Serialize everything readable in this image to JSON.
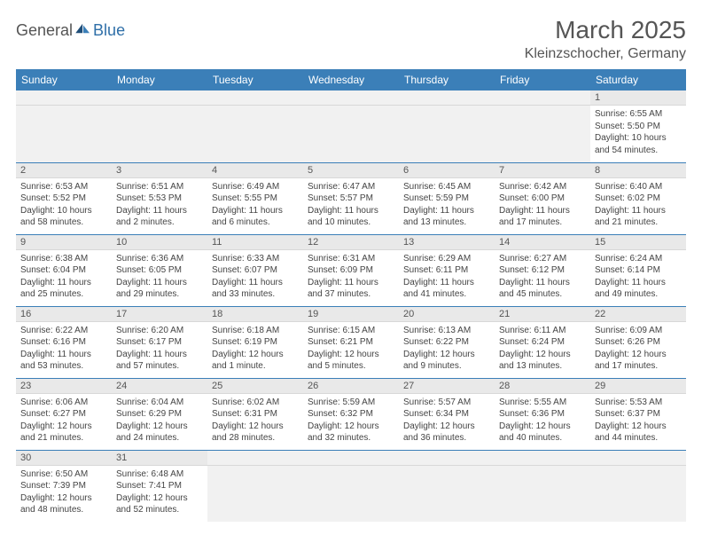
{
  "logo": {
    "part1": "General",
    "part2": "Blue"
  },
  "title": "March 2025",
  "location": "Kleinzschocher, Germany",
  "colors": {
    "header_bg": "#3b7fb8",
    "header_text": "#ffffff",
    "daynum_bg": "#e9e9e9",
    "border": "#3b7fb8",
    "logo_blue": "#2f6fa8",
    "text": "#444444"
  },
  "weekdays": [
    "Sunday",
    "Monday",
    "Tuesday",
    "Wednesday",
    "Thursday",
    "Friday",
    "Saturday"
  ],
  "weeks": [
    [
      {
        "empty": true
      },
      {
        "empty": true
      },
      {
        "empty": true
      },
      {
        "empty": true
      },
      {
        "empty": true
      },
      {
        "empty": true
      },
      {
        "day": "1",
        "sunrise": "Sunrise: 6:55 AM",
        "sunset": "Sunset: 5:50 PM",
        "daylight": "Daylight: 10 hours and 54 minutes."
      }
    ],
    [
      {
        "day": "2",
        "sunrise": "Sunrise: 6:53 AM",
        "sunset": "Sunset: 5:52 PM",
        "daylight": "Daylight: 10 hours and 58 minutes."
      },
      {
        "day": "3",
        "sunrise": "Sunrise: 6:51 AM",
        "sunset": "Sunset: 5:53 PM",
        "daylight": "Daylight: 11 hours and 2 minutes."
      },
      {
        "day": "4",
        "sunrise": "Sunrise: 6:49 AM",
        "sunset": "Sunset: 5:55 PM",
        "daylight": "Daylight: 11 hours and 6 minutes."
      },
      {
        "day": "5",
        "sunrise": "Sunrise: 6:47 AM",
        "sunset": "Sunset: 5:57 PM",
        "daylight": "Daylight: 11 hours and 10 minutes."
      },
      {
        "day": "6",
        "sunrise": "Sunrise: 6:45 AM",
        "sunset": "Sunset: 5:59 PM",
        "daylight": "Daylight: 11 hours and 13 minutes."
      },
      {
        "day": "7",
        "sunrise": "Sunrise: 6:42 AM",
        "sunset": "Sunset: 6:00 PM",
        "daylight": "Daylight: 11 hours and 17 minutes."
      },
      {
        "day": "8",
        "sunrise": "Sunrise: 6:40 AM",
        "sunset": "Sunset: 6:02 PM",
        "daylight": "Daylight: 11 hours and 21 minutes."
      }
    ],
    [
      {
        "day": "9",
        "sunrise": "Sunrise: 6:38 AM",
        "sunset": "Sunset: 6:04 PM",
        "daylight": "Daylight: 11 hours and 25 minutes."
      },
      {
        "day": "10",
        "sunrise": "Sunrise: 6:36 AM",
        "sunset": "Sunset: 6:05 PM",
        "daylight": "Daylight: 11 hours and 29 minutes."
      },
      {
        "day": "11",
        "sunrise": "Sunrise: 6:33 AM",
        "sunset": "Sunset: 6:07 PM",
        "daylight": "Daylight: 11 hours and 33 minutes."
      },
      {
        "day": "12",
        "sunrise": "Sunrise: 6:31 AM",
        "sunset": "Sunset: 6:09 PM",
        "daylight": "Daylight: 11 hours and 37 minutes."
      },
      {
        "day": "13",
        "sunrise": "Sunrise: 6:29 AM",
        "sunset": "Sunset: 6:11 PM",
        "daylight": "Daylight: 11 hours and 41 minutes."
      },
      {
        "day": "14",
        "sunrise": "Sunrise: 6:27 AM",
        "sunset": "Sunset: 6:12 PM",
        "daylight": "Daylight: 11 hours and 45 minutes."
      },
      {
        "day": "15",
        "sunrise": "Sunrise: 6:24 AM",
        "sunset": "Sunset: 6:14 PM",
        "daylight": "Daylight: 11 hours and 49 minutes."
      }
    ],
    [
      {
        "day": "16",
        "sunrise": "Sunrise: 6:22 AM",
        "sunset": "Sunset: 6:16 PM",
        "daylight": "Daylight: 11 hours and 53 minutes."
      },
      {
        "day": "17",
        "sunrise": "Sunrise: 6:20 AM",
        "sunset": "Sunset: 6:17 PM",
        "daylight": "Daylight: 11 hours and 57 minutes."
      },
      {
        "day": "18",
        "sunrise": "Sunrise: 6:18 AM",
        "sunset": "Sunset: 6:19 PM",
        "daylight": "Daylight: 12 hours and 1 minute."
      },
      {
        "day": "19",
        "sunrise": "Sunrise: 6:15 AM",
        "sunset": "Sunset: 6:21 PM",
        "daylight": "Daylight: 12 hours and 5 minutes."
      },
      {
        "day": "20",
        "sunrise": "Sunrise: 6:13 AM",
        "sunset": "Sunset: 6:22 PM",
        "daylight": "Daylight: 12 hours and 9 minutes."
      },
      {
        "day": "21",
        "sunrise": "Sunrise: 6:11 AM",
        "sunset": "Sunset: 6:24 PM",
        "daylight": "Daylight: 12 hours and 13 minutes."
      },
      {
        "day": "22",
        "sunrise": "Sunrise: 6:09 AM",
        "sunset": "Sunset: 6:26 PM",
        "daylight": "Daylight: 12 hours and 17 minutes."
      }
    ],
    [
      {
        "day": "23",
        "sunrise": "Sunrise: 6:06 AM",
        "sunset": "Sunset: 6:27 PM",
        "daylight": "Daylight: 12 hours and 21 minutes."
      },
      {
        "day": "24",
        "sunrise": "Sunrise: 6:04 AM",
        "sunset": "Sunset: 6:29 PM",
        "daylight": "Daylight: 12 hours and 24 minutes."
      },
      {
        "day": "25",
        "sunrise": "Sunrise: 6:02 AM",
        "sunset": "Sunset: 6:31 PM",
        "daylight": "Daylight: 12 hours and 28 minutes."
      },
      {
        "day": "26",
        "sunrise": "Sunrise: 5:59 AM",
        "sunset": "Sunset: 6:32 PM",
        "daylight": "Daylight: 12 hours and 32 minutes."
      },
      {
        "day": "27",
        "sunrise": "Sunrise: 5:57 AM",
        "sunset": "Sunset: 6:34 PM",
        "daylight": "Daylight: 12 hours and 36 minutes."
      },
      {
        "day": "28",
        "sunrise": "Sunrise: 5:55 AM",
        "sunset": "Sunset: 6:36 PM",
        "daylight": "Daylight: 12 hours and 40 minutes."
      },
      {
        "day": "29",
        "sunrise": "Sunrise: 5:53 AM",
        "sunset": "Sunset: 6:37 PM",
        "daylight": "Daylight: 12 hours and 44 minutes."
      }
    ],
    [
      {
        "day": "30",
        "sunrise": "Sunrise: 6:50 AM",
        "sunset": "Sunset: 7:39 PM",
        "daylight": "Daylight: 12 hours and 48 minutes."
      },
      {
        "day": "31",
        "sunrise": "Sunrise: 6:48 AM",
        "sunset": "Sunset: 7:41 PM",
        "daylight": "Daylight: 12 hours and 52 minutes."
      },
      {
        "empty": true
      },
      {
        "empty": true
      },
      {
        "empty": true
      },
      {
        "empty": true
      },
      {
        "empty": true
      }
    ]
  ]
}
